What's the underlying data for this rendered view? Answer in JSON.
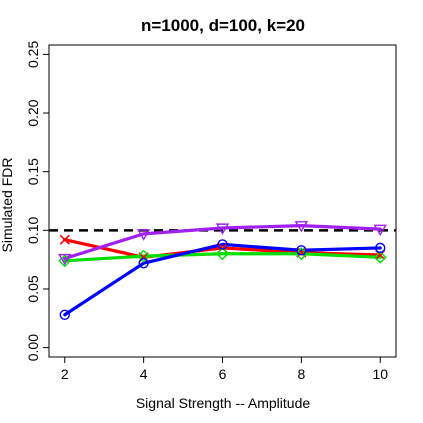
{
  "chart_data": {
    "type": "line",
    "title": "n=1000, d=100, k=20",
    "xlabel": "Signal Strength -- Amplitude",
    "ylabel": "Simulated FDR",
    "xlim": [
      1.6,
      10.4
    ],
    "ylim": [
      -0.008,
      0.258
    ],
    "xticks": [
      "2",
      "4",
      "6",
      "8",
      "10"
    ],
    "yticks": [
      "0.00",
      "0.05",
      "0.10",
      "0.15",
      "0.20",
      "0.25"
    ],
    "grid": false,
    "reference_line": {
      "y": 0.1,
      "style": "dashed",
      "color": "#000000"
    },
    "x": [
      2,
      4,
      6,
      8,
      10
    ],
    "series": [
      {
        "color": "#ff0000",
        "marker": "x",
        "values": [
          0.092,
          0.077,
          0.085,
          0.081,
          0.079
        ]
      },
      {
        "color": "#00dd00",
        "marker": "diamond",
        "values": [
          0.074,
          0.078,
          0.08,
          0.08,
          0.077
        ]
      },
      {
        "color": "#0000ff",
        "marker": "circle",
        "values": [
          0.028,
          0.072,
          0.088,
          0.083,
          0.085
        ]
      },
      {
        "color": "#a020f0",
        "marker": "triangle-down",
        "values": [
          0.076,
          0.097,
          0.102,
          0.104,
          0.101
        ]
      }
    ]
  }
}
